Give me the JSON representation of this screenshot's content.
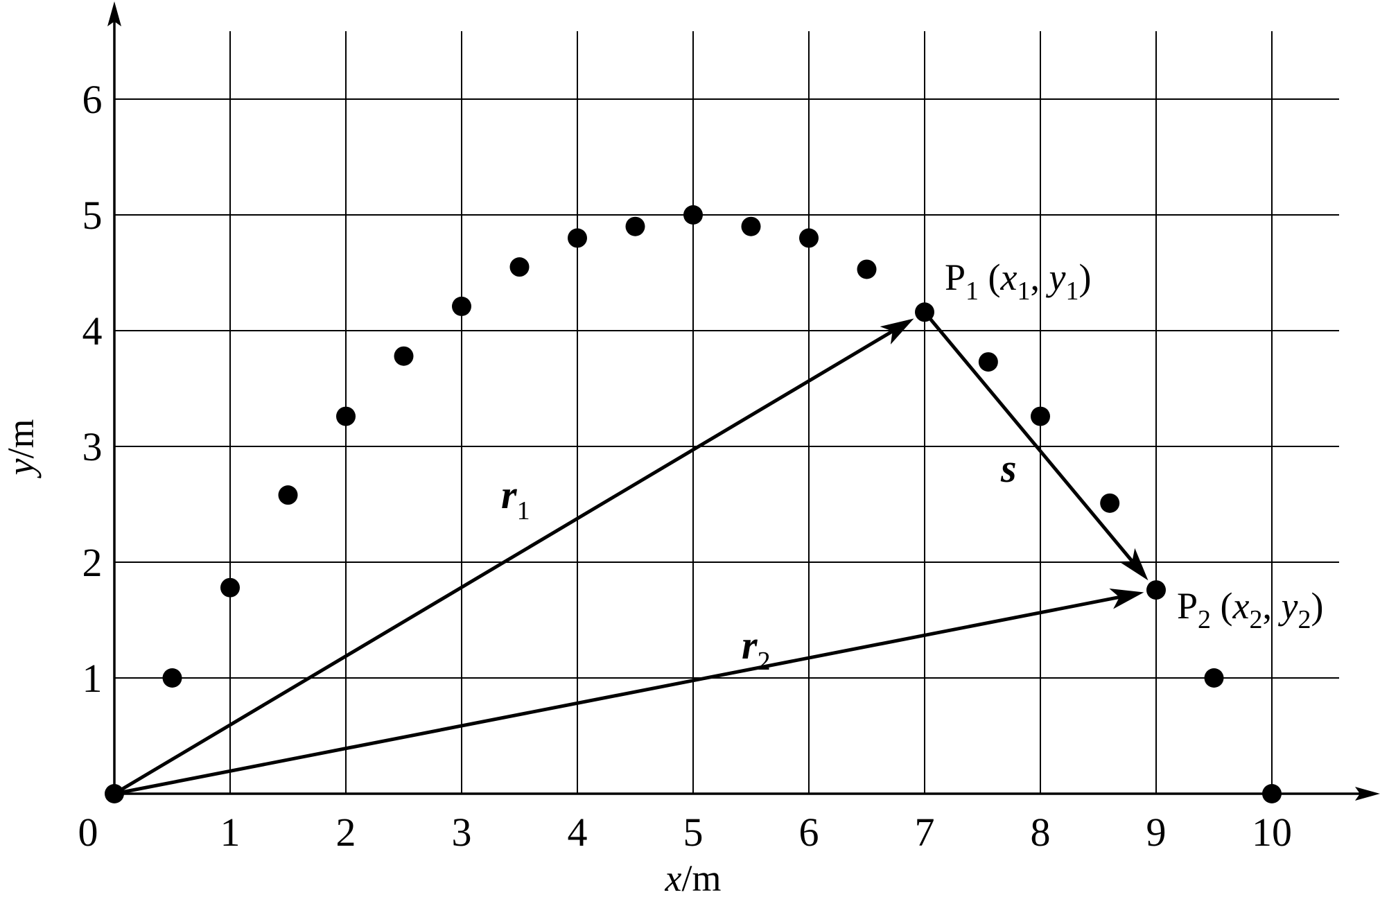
{
  "chart_data": {
    "type": "scatter",
    "title": "",
    "xlabel": {
      "var": "x",
      "unit": "/m"
    },
    "ylabel": {
      "var": "y",
      "unit": "/m"
    },
    "xlim": [
      0,
      10.5
    ],
    "ylim": [
      0,
      6.5
    ],
    "x_ticks": [
      "0",
      "1",
      "2",
      "3",
      "4",
      "5",
      "6",
      "7",
      "8",
      "9",
      "10"
    ],
    "y_ticks": [
      "1",
      "2",
      "3",
      "4",
      "5",
      "6"
    ],
    "grid": true,
    "points": [
      {
        "x": 0,
        "y": 0
      },
      {
        "x": 0.5,
        "y": 1.0
      },
      {
        "x": 1.0,
        "y": 1.78
      },
      {
        "x": 1.5,
        "y": 2.58
      },
      {
        "x": 2.0,
        "y": 3.26
      },
      {
        "x": 2.5,
        "y": 3.78
      },
      {
        "x": 3.0,
        "y": 4.21
      },
      {
        "x": 3.5,
        "y": 4.55
      },
      {
        "x": 4.0,
        "y": 4.8
      },
      {
        "x": 4.5,
        "y": 4.9
      },
      {
        "x": 5.0,
        "y": 5.0
      },
      {
        "x": 5.5,
        "y": 4.9
      },
      {
        "x": 6.0,
        "y": 4.8
      },
      {
        "x": 6.5,
        "y": 4.53
      },
      {
        "x": 7.0,
        "y": 4.16
      },
      {
        "x": 7.55,
        "y": 3.73
      },
      {
        "x": 8.0,
        "y": 3.26
      },
      {
        "x": 8.6,
        "y": 2.51
      },
      {
        "x": 9.0,
        "y": 1.76
      },
      {
        "x": 9.5,
        "y": 1.0
      },
      {
        "x": 10.0,
        "y": 0
      }
    ],
    "vectors": [
      {
        "name": "r",
        "sub": "1",
        "from": [
          0,
          0
        ],
        "to": [
          7.0,
          4.16
        ]
      },
      {
        "name": "r",
        "sub": "2",
        "from": [
          0,
          0
        ],
        "to": [
          9.0,
          1.76
        ]
      },
      {
        "name": "s",
        "sub": "",
        "from": [
          7.0,
          4.16
        ],
        "to": [
          9.0,
          1.76
        ]
      }
    ],
    "point_labels": [
      {
        "name": "P",
        "sub": "1",
        "xvar": "x",
        "yvar": "y",
        "at": [
          7.0,
          4.16
        ]
      },
      {
        "name": "P",
        "sub": "2",
        "xvar": "x",
        "yvar": "y",
        "at": [
          9.0,
          1.76
        ]
      }
    ]
  }
}
